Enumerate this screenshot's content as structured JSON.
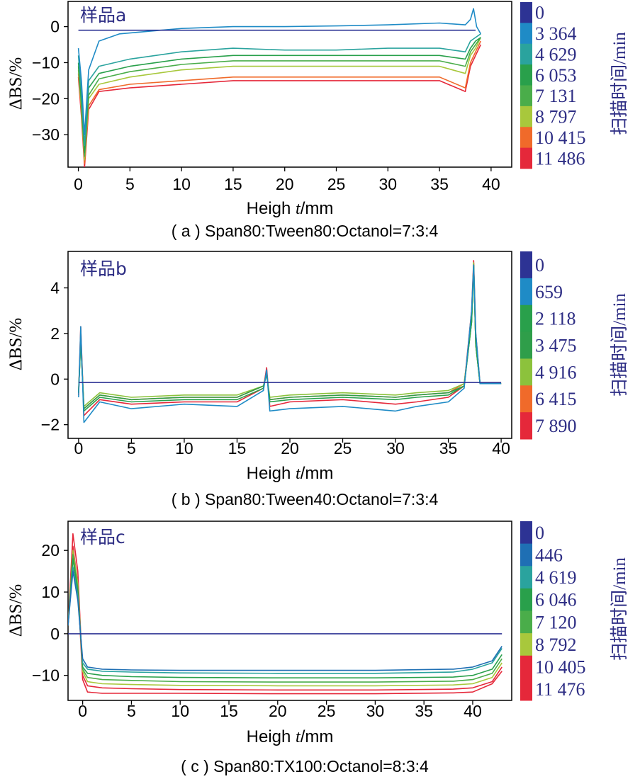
{
  "chart_data": [
    {
      "type": "line",
      "sample_label": "样品a",
      "caption": "( a ) Span80:Tween80:Octanol=7:3:4",
      "xlabel_main": "Heigh ",
      "xlabel_var": "t",
      "xlabel_unit": "/mm",
      "ylabel": "ΔBS/%",
      "legend_title": "扫描时间/min",
      "xlim": [
        -1,
        42
      ],
      "ylim": [
        -39,
        7
      ],
      "x_ticks": [
        0,
        5,
        10,
        15,
        20,
        25,
        30,
        35,
        40
      ],
      "y_ticks": [
        -30,
        -20,
        -10,
        0
      ],
      "y_tick_labels": [
        "−30",
        "−20",
        "−10",
        "0"
      ],
      "colors": [
        "#2d3394",
        "#1f8bc6",
        "#2aa39e",
        "#29a04b",
        "#4aad4a",
        "#a8c83c",
        "#f06a2a",
        "#e5283a"
      ],
      "series": [
        {
          "name": "0",
          "x": [
            0.0,
            0.3,
            1.0,
            38.5
          ],
          "y": [
            -1.0,
            -1.0,
            -1.0,
            -1.0
          ]
        },
        {
          "name": "3 364",
          "x": [
            0.0,
            0.3,
            0.6,
            1.0,
            2.0,
            4.0,
            8.0,
            10.0,
            15.0,
            20.0,
            25.0,
            30.0,
            35.0,
            37.5,
            38.0,
            38.3,
            38.6,
            39.0
          ],
          "y": [
            -6.0,
            -15.0,
            -30.0,
            -12.0,
            -4.0,
            -2.0,
            -1.0,
            -0.5,
            0.0,
            0.0,
            0.2,
            0.5,
            1.0,
            0.5,
            2.0,
            5.0,
            0.0,
            -2.0
          ]
        },
        {
          "name": "4 629",
          "x": [
            0.0,
            0.3,
            0.6,
            1.0,
            2.0,
            5.0,
            10.0,
            15.0,
            20.0,
            25.0,
            30.0,
            35.0,
            37.5,
            38.0,
            38.5,
            39.0
          ],
          "y": [
            -8.0,
            -18.0,
            -33.0,
            -15.0,
            -11.0,
            -9.0,
            -7.0,
            -6.0,
            -6.5,
            -6.5,
            -6.0,
            -6.0,
            -7.0,
            -4.0,
            -3.0,
            -2.0
          ]
        },
        {
          "name": "6 053",
          "x": [
            0.0,
            0.3,
            0.6,
            1.0,
            2.0,
            5.0,
            10.0,
            15.0,
            20.0,
            25.0,
            30.0,
            35.0,
            37.5,
            38.0,
            38.5,
            39.0
          ],
          "y": [
            -10.0,
            -20.0,
            -35.0,
            -17.0,
            -13.0,
            -11.0,
            -9.0,
            -8.0,
            -8.0,
            -8.0,
            -8.0,
            -8.0,
            -9.0,
            -6.0,
            -4.0,
            -3.0
          ]
        },
        {
          "name": "7 131",
          "x": [
            0.0,
            0.3,
            0.6,
            1.0,
            2.0,
            5.0,
            10.0,
            15.0,
            20.0,
            25.0,
            30.0,
            35.0,
            37.5,
            38.0,
            38.5,
            39.0
          ],
          "y": [
            -11.0,
            -22.0,
            -36.0,
            -19.0,
            -14.5,
            -12.5,
            -10.5,
            -9.5,
            -9.5,
            -9.5,
            -9.5,
            -9.5,
            -11.0,
            -7.0,
            -5.0,
            -3.0
          ]
        },
        {
          "name": "8 797",
          "x": [
            0.0,
            0.3,
            0.6,
            1.0,
            2.0,
            5.0,
            10.0,
            15.0,
            20.0,
            25.0,
            30.0,
            35.0,
            37.5,
            38.0,
            38.5,
            39.0
          ],
          "y": [
            -12.0,
            -23.0,
            -37.0,
            -20.0,
            -16.0,
            -14.0,
            -12.0,
            -11.0,
            -11.0,
            -11.0,
            -11.0,
            -11.0,
            -13.0,
            -8.0,
            -6.0,
            -3.0
          ]
        },
        {
          "name": "10 415",
          "x": [
            0.0,
            0.3,
            0.6,
            1.0,
            2.0,
            5.0,
            10.0,
            15.0,
            20.0,
            25.0,
            30.0,
            35.0,
            37.5,
            38.0,
            38.5,
            39.0
          ],
          "y": [
            -13.0,
            -24.0,
            -38.0,
            -22.0,
            -17.5,
            -16.0,
            -15.0,
            -14.0,
            -14.0,
            -14.0,
            -14.0,
            -14.0,
            -17.0,
            -10.0,
            -7.0,
            -4.0
          ]
        },
        {
          "name": "11 486",
          "x": [
            0.0,
            0.3,
            0.6,
            1.0,
            2.0,
            5.0,
            10.0,
            15.0,
            20.0,
            25.0,
            30.0,
            35.0,
            37.5,
            38.0,
            38.5,
            39.0
          ],
          "y": [
            -14.0,
            -25.0,
            -39.0,
            -23.0,
            -18.0,
            -17.0,
            -16.0,
            -15.0,
            -15.0,
            -15.0,
            -15.0,
            -15.0,
            -18.0,
            -11.0,
            -8.0,
            -5.0
          ]
        }
      ]
    },
    {
      "type": "line",
      "sample_label": "样品b",
      "caption": "( b ) Span80:Tween40:Octanol=7:3:4",
      "xlabel_main": "Heigh ",
      "xlabel_var": "t",
      "xlabel_unit": "/mm",
      "ylabel": "ΔBS/%",
      "legend_title": "扫描时间/min",
      "xlim": [
        -1,
        41
      ],
      "ylim": [
        -2.6,
        5.6
      ],
      "x_ticks": [
        0,
        5,
        10,
        15,
        20,
        25,
        30,
        35,
        40
      ],
      "y_ticks": [
        -2,
        0,
        2,
        4
      ],
      "y_tick_labels": [
        "−2",
        "0",
        "2",
        "4"
      ],
      "colors": [
        "#2d3394",
        "#1f8bc6",
        "#29a04b",
        "#2f9e4a",
        "#8cc23c",
        "#f06a2a",
        "#e5283a"
      ],
      "series": [
        {
          "name": "0",
          "x": [
            0.0,
            37.0,
            40.0
          ],
          "y": [
            -0.15,
            -0.15,
            -0.15
          ]
        },
        {
          "name": "659",
          "x": [
            0.0,
            0.2,
            0.5,
            2.0,
            5.0,
            10.0,
            15.0,
            17.5,
            17.8,
            18.1,
            20.0,
            25.0,
            30.0,
            32.0,
            35.0,
            36.5,
            37.2,
            37.4,
            37.6,
            38.0,
            40.0
          ],
          "y": [
            -0.8,
            2.3,
            -1.9,
            -1.0,
            -1.3,
            -1.1,
            -1.2,
            -0.5,
            0.4,
            -1.4,
            -1.3,
            -1.2,
            -1.4,
            -1.2,
            -1.0,
            -0.4,
            3.0,
            5.0,
            2.0,
            -0.2,
            -0.2
          ]
        },
        {
          "name": "2 118",
          "x": [
            0.0,
            0.2,
            0.5,
            2.0,
            5.0,
            10.0,
            15.0,
            17.5,
            17.8,
            18.1,
            20.0,
            25.0,
            30.0,
            32.0,
            35.0,
            36.5,
            37.2,
            37.4,
            37.6,
            38.0,
            40.0
          ],
          "y": [
            -0.6,
            1.8,
            -1.4,
            -0.8,
            -1.0,
            -0.9,
            -0.9,
            -0.4,
            0.3,
            -1.0,
            -0.9,
            -0.8,
            -0.9,
            -0.8,
            -0.7,
            -0.3,
            2.5,
            5.0,
            1.5,
            -0.2,
            -0.2
          ]
        },
        {
          "name": "3 475",
          "x": [
            0.0,
            0.2,
            0.5,
            2.0,
            5.0,
            10.0,
            15.0,
            17.5,
            17.8,
            18.1,
            20.0,
            25.0,
            30.0,
            32.0,
            35.0,
            36.5,
            37.2,
            37.4,
            37.6,
            38.0,
            40.0
          ],
          "y": [
            -0.6,
            1.7,
            -1.3,
            -0.7,
            -0.9,
            -0.8,
            -0.8,
            -0.3,
            0.2,
            -0.9,
            -0.8,
            -0.7,
            -0.8,
            -0.7,
            -0.6,
            -0.3,
            2.5,
            5.0,
            1.5,
            -0.2,
            -0.2
          ]
        },
        {
          "name": "4 916",
          "x": [
            0.0,
            0.2,
            0.5,
            2.0,
            5.0,
            10.0,
            15.0,
            17.5,
            17.8,
            18.1,
            20.0,
            25.0,
            30.0,
            32.0,
            35.0,
            36.5,
            37.2,
            37.4,
            37.6,
            38.0,
            40.0
          ],
          "y": [
            -0.5,
            1.6,
            -1.2,
            -0.6,
            -0.8,
            -0.7,
            -0.7,
            -0.3,
            0.2,
            -0.8,
            -0.7,
            -0.6,
            -0.7,
            -0.6,
            -0.5,
            -0.2,
            2.5,
            5.1,
            1.5,
            -0.2,
            -0.2
          ]
        },
        {
          "name": "6 415",
          "x": [
            0.0,
            0.2,
            0.5,
            2.0,
            5.0,
            10.0,
            15.0,
            17.5,
            17.8,
            18.1,
            20.0,
            25.0,
            30.0,
            32.0,
            35.0,
            36.5,
            37.2,
            37.4,
            37.6,
            38.0,
            40.0
          ],
          "y": [
            -0.5,
            1.8,
            -1.3,
            -0.7,
            -0.9,
            -0.8,
            -0.8,
            -0.3,
            0.3,
            -0.9,
            -0.8,
            -0.7,
            -0.8,
            -0.7,
            -0.6,
            -0.2,
            2.6,
            5.1,
            1.5,
            -0.2,
            -0.2
          ]
        },
        {
          "name": "7 890",
          "x": [
            0.0,
            0.2,
            0.5,
            2.0,
            5.0,
            10.0,
            15.0,
            17.5,
            17.8,
            18.1,
            20.0,
            25.0,
            30.0,
            32.0,
            35.0,
            36.5,
            37.2,
            37.4,
            37.6,
            38.0,
            40.0
          ],
          "y": [
            -0.7,
            2.3,
            -1.6,
            -0.9,
            -1.1,
            -1.0,
            -1.0,
            -0.4,
            0.5,
            -1.2,
            -1.0,
            -0.9,
            -1.1,
            -1.0,
            -0.8,
            -0.3,
            3.0,
            5.2,
            2.0,
            -0.2,
            -0.2
          ]
        }
      ]
    },
    {
      "type": "line",
      "sample_label": "样品c",
      "caption": "( c ) Span80:TX100:Octanol=8:3:4",
      "xlabel_main": "Heigh ",
      "xlabel_var": "t",
      "xlabel_unit": "/mm",
      "ylabel": "ΔBS/%",
      "legend_title": "扫描时间/min",
      "xlim": [
        -1.5,
        44
      ],
      "ylim": [
        -16,
        27
      ],
      "x_ticks": [
        0,
        5,
        10,
        15,
        20,
        25,
        30,
        35,
        40
      ],
      "y_ticks": [
        -10,
        0,
        10,
        20
      ],
      "y_tick_labels": [
        "−10",
        "0",
        "10",
        "20"
      ],
      "colors": [
        "#2d3394",
        "#1f6fb4",
        "#2aa39e",
        "#29a04b",
        "#4aad4a",
        "#a8c83c",
        "#e5283a",
        "#e5283a"
      ],
      "series": [
        {
          "name": "0",
          "x": [
            -1.5,
            43.0
          ],
          "y": [
            0.0,
            0.0
          ]
        },
        {
          "name": "446",
          "x": [
            -1.5,
            -1.0,
            -0.5,
            0.0,
            0.5,
            2.0,
            5.0,
            10.0,
            20.0,
            30.0,
            38.0,
            40.0,
            42.0,
            43.0
          ],
          "y": [
            2.0,
            15.0,
            8.0,
            -6.0,
            -8.0,
            -8.5,
            -8.7,
            -8.8,
            -8.8,
            -8.8,
            -8.5,
            -8.0,
            -6.5,
            -3.0
          ]
        },
        {
          "name": "4 619",
          "x": [
            -1.5,
            -1.0,
            -0.5,
            0.0,
            0.5,
            2.0,
            5.0,
            10.0,
            20.0,
            30.0,
            38.0,
            40.0,
            42.0,
            43.0
          ],
          "y": [
            2.0,
            16.0,
            9.0,
            -7.0,
            -8.5,
            -9.0,
            -9.2,
            -9.4,
            -9.5,
            -9.5,
            -9.2,
            -8.5,
            -7.0,
            -3.5
          ]
        },
        {
          "name": "6 046",
          "x": [
            -1.5,
            -1.0,
            -0.5,
            0.0,
            0.5,
            2.0,
            5.0,
            10.0,
            20.0,
            30.0,
            38.0,
            40.0,
            42.0,
            43.0
          ],
          "y": [
            2.0,
            18.0,
            10.0,
            -8.0,
            -9.5,
            -10.0,
            -10.3,
            -10.5,
            -10.6,
            -10.6,
            -10.4,
            -10.0,
            -8.5,
            -5.0
          ]
        },
        {
          "name": "7 120",
          "x": [
            -1.5,
            -1.0,
            -0.5,
            0.0,
            0.5,
            2.0,
            5.0,
            10.0,
            20.0,
            30.0,
            38.0,
            40.0,
            42.0,
            43.0
          ],
          "y": [
            2.0,
            19.0,
            11.0,
            -8.5,
            -10.5,
            -11.0,
            -11.2,
            -11.5,
            -11.6,
            -11.6,
            -11.4,
            -11.0,
            -9.5,
            -6.0
          ]
        },
        {
          "name": "8 792",
          "x": [
            -1.5,
            -1.0,
            -0.5,
            0.0,
            0.5,
            2.0,
            5.0,
            10.0,
            20.0,
            30.0,
            38.0,
            40.0,
            42.0,
            43.0
          ],
          "y": [
            2.0,
            20.0,
            12.0,
            -9.0,
            -11.5,
            -12.0,
            -12.2,
            -12.4,
            -12.5,
            -12.5,
            -12.3,
            -12.0,
            -10.5,
            -7.0
          ]
        },
        {
          "name": "10 405",
          "x": [
            -1.5,
            -1.0,
            -0.5,
            0.0,
            0.5,
            2.0,
            5.0,
            10.0,
            20.0,
            30.0,
            38.0,
            40.0,
            42.0,
            43.0
          ],
          "y": [
            2.0,
            24.0,
            15.0,
            -10.0,
            -12.5,
            -13.0,
            -13.2,
            -13.4,
            -13.5,
            -13.5,
            -13.3,
            -13.0,
            -11.5,
            -8.0
          ]
        },
        {
          "name": "11 476",
          "x": [
            -1.5,
            -1.0,
            -0.5,
            0.0,
            0.5,
            2.0,
            5.0,
            10.0,
            20.0,
            30.0,
            38.0,
            40.0,
            42.0,
            43.0
          ],
          "y": [
            2.0,
            21.0,
            12.0,
            -11.0,
            -14.0,
            -14.3,
            -14.3,
            -14.3,
            -14.4,
            -14.4,
            -14.2,
            -14.0,
            -12.0,
            -9.0
          ]
        }
      ]
    }
  ]
}
